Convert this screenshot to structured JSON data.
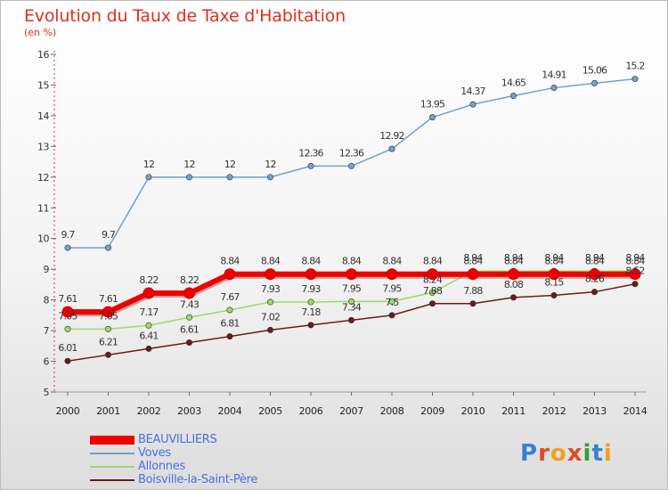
{
  "title": "Evolution du Taux de Taxe d'Habitation",
  "unit": "(en %)",
  "logo": {
    "text": "Proxiti"
  },
  "chart_data": {
    "type": "line",
    "categories": [
      "2000",
      "2001",
      "2002",
      "2003",
      "2004",
      "2005",
      "2006",
      "2007",
      "2008",
      "2009",
      "2010",
      "2011",
      "2012",
      "2013",
      "2014"
    ],
    "ylim": [
      5,
      16
    ],
    "yticks": [
      "5",
      "6",
      "7",
      "8",
      "9",
      "10",
      "11",
      "12",
      "13",
      "14",
      "15",
      "16"
    ],
    "grid": false,
    "legend_position": "bottom-left",
    "series": [
      {
        "name": "Boisville-la-Saint-Père",
        "color": "#6b1a1a",
        "width": 1.5,
        "values": [
          6.01,
          6.21,
          6.41,
          6.61,
          6.81,
          7.02,
          7.18,
          7.34,
          7.5,
          7.88,
          7.88,
          8.08,
          8.15,
          8.26,
          8.52
        ],
        "labels": [
          "6.01",
          "6.21",
          "6.41",
          "6.61",
          "6.81",
          "7.02",
          "7.18",
          "7.34",
          "7.5",
          "7.88",
          "7.88",
          "8.08",
          "8.15",
          "8.26",
          "8.52"
        ]
      },
      {
        "name": "Allonnes",
        "color": "#9dd96a",
        "width": 1.5,
        "values": [
          7.05,
          7.05,
          7.17,
          7.43,
          7.67,
          7.93,
          7.93,
          7.95,
          7.95,
          8.24,
          8.94,
          8.94,
          8.94,
          8.94,
          8.94
        ],
        "labels": [
          "7.05",
          "7.05",
          "7.17",
          "7.43",
          "7.67",
          "7.93",
          "7.93",
          "7.95",
          "7.95",
          "8.24",
          "8.94",
          "8.94",
          "8.94",
          "8.94",
          "8.94"
        ]
      },
      {
        "name": "Voves",
        "color": "#6fa0cf",
        "width": 1.5,
        "values": [
          9.7,
          9.7,
          12,
          12,
          12,
          12,
          12.36,
          12.36,
          12.92,
          13.95,
          14.37,
          14.65,
          14.91,
          15.06,
          15.2
        ],
        "labels": [
          "9.7",
          "9.7",
          "12",
          "12",
          "12",
          "12",
          "12.36",
          "12.36",
          "12.92",
          "13.95",
          "14.37",
          "14.65",
          "14.91",
          "15.06",
          "15.2"
        ]
      },
      {
        "name": "BEAUVILLIERS",
        "color": "#ee0000",
        "width": 6,
        "values": [
          7.61,
          7.61,
          8.22,
          8.22,
          8.84,
          8.84,
          8.84,
          8.84,
          8.84,
          8.84,
          8.84,
          8.84,
          8.84,
          8.84,
          8.84
        ],
        "labels": [
          "7.61",
          "7.61",
          "8.22",
          "8.22",
          "8.84",
          "8.84",
          "8.84",
          "8.84",
          "8.84",
          "8.84",
          "8.84",
          "8.84",
          "8.84",
          "8.84",
          "8.84"
        ]
      }
    ],
    "legend_order": [
      "BEAUVILLIERS",
      "Voves",
      "Allonnes",
      "Boisville-la-Saint-Père"
    ]
  }
}
